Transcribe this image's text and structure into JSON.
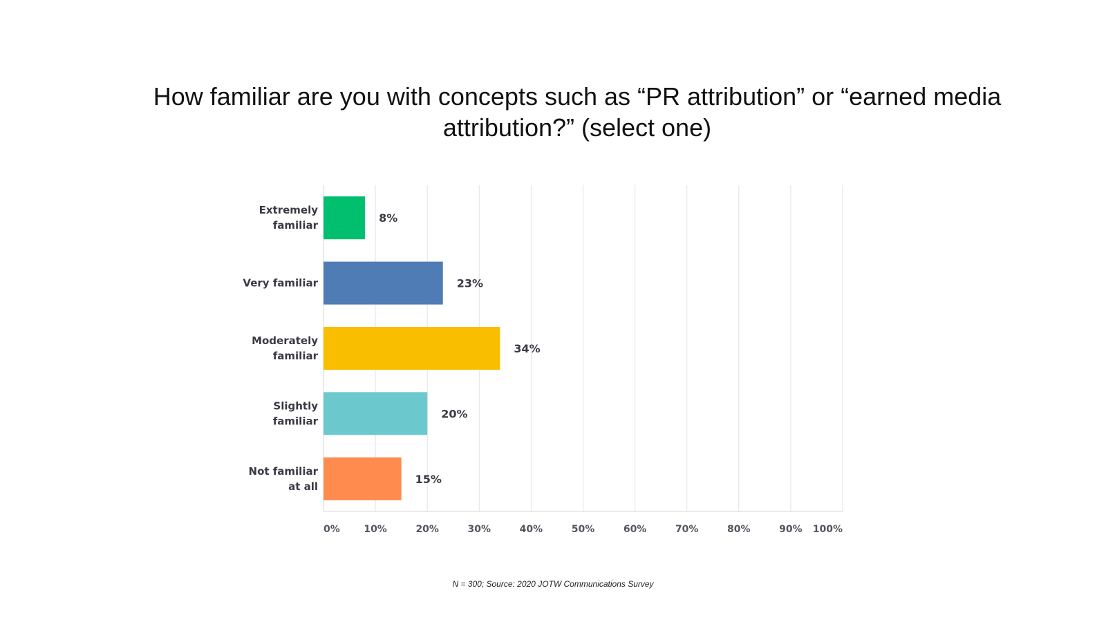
{
  "page": {
    "title_lines": [
      "How familiar are you with concepts such as “PR attribution” or “earned media",
      "attribution?” (select one)"
    ],
    "footnote": "N = 300; Source: 2020 JOTW Communications Survey"
  },
  "chart_data": {
    "type": "bar",
    "orientation": "horizontal",
    "title": "How familiar are you with concepts such as “PR attribution” or “earned media attribution?” (select one)",
    "categories": [
      [
        "Extremely",
        "familiar"
      ],
      [
        "Very familiar"
      ],
      [
        "Moderately",
        "familiar"
      ],
      [
        "Slightly",
        "familiar"
      ],
      [
        "Not familiar",
        "at all"
      ]
    ],
    "values": [
      8,
      23,
      34,
      20,
      15
    ],
    "value_labels": [
      "8%",
      "23%",
      "34%",
      "20%",
      "15%"
    ],
    "colors": [
      "#00bf6f",
      "#507cb6",
      "#f9be00",
      "#6bc8cd",
      "#ff8b4f"
    ],
    "xlim": [
      0,
      100
    ],
    "x_ticks": [
      0,
      10,
      20,
      30,
      40,
      50,
      60,
      70,
      80,
      90,
      100
    ],
    "x_tick_labels": [
      "0%",
      "10%",
      "20%",
      "30%",
      "40%",
      "50%",
      "60%",
      "70%",
      "80%",
      "90%",
      "100%"
    ],
    "grid": "vertical",
    "legend": "none"
  }
}
